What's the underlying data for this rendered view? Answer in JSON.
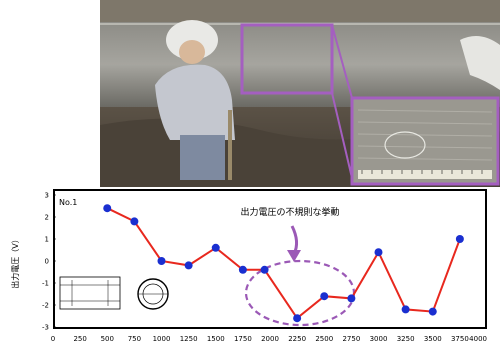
{
  "photo": {
    "description_icon": "pipe-inspection-photo"
  },
  "chart_data": {
    "type": "line",
    "panel_label": "No.1",
    "ylabel": "出力電圧（V）",
    "xlabel": "",
    "annotation": "出力電圧の不規則な挙動",
    "xlim": [
      0,
      4000
    ],
    "ylim": [
      -3,
      3
    ],
    "x_ticks": [
      "0",
      "250",
      "500",
      "750",
      "1000",
      "1250",
      "1500",
      "1750",
      "2000",
      "2250",
      "2500",
      "2750",
      "3000",
      "3250",
      "3500",
      "3750",
      "4000"
    ],
    "y_ticks": [
      "3",
      "2",
      "1",
      "0",
      "-1",
      "-2",
      "-3"
    ],
    "series": [
      {
        "x": [
          500,
          750,
          1000,
          1250,
          1500,
          1750,
          1950,
          2250,
          2500,
          2750,
          3000,
          3250,
          3500,
          3750
        ],
        "y": [
          2.4,
          1.8,
          0.0,
          -0.2,
          0.6,
          -0.4,
          -0.4,
          -2.6,
          -1.6,
          -1.7,
          0.4,
          -2.2,
          -2.3,
          1.0
        ],
        "color": "#e8281e",
        "marker_color": "#1a2fd0"
      }
    ],
    "highlight_color": "#9b59b6",
    "grid": false
  }
}
